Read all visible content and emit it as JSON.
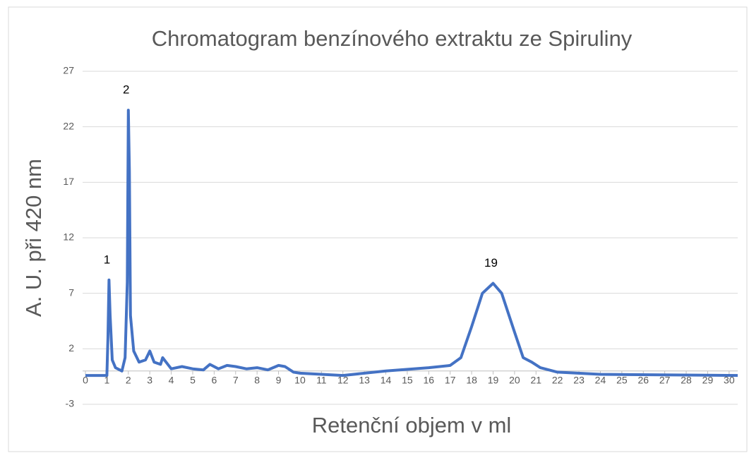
{
  "chart_data": {
    "type": "line",
    "title": "Chromatogram benzínového extraktu ze Spiruliny",
    "x_label": "Retenční objem v ml",
    "y_label": "A. U. při 420 nm",
    "x": [
      0,
      1.0,
      1.05,
      1.1,
      1.15,
      1.25,
      1.4,
      1.7,
      1.85,
      1.95,
      2.0,
      2.05,
      2.1,
      2.25,
      2.5,
      2.8,
      3.0,
      3.2,
      3.5,
      3.6,
      3.8,
      4.0,
      4.5,
      5.0,
      5.5,
      5.8,
      6.2,
      6.6,
      7.0,
      7.5,
      8.0,
      8.5,
      9.0,
      9.3,
      9.7,
      10.0,
      12.0,
      14.0,
      16.0,
      17.0,
      17.5,
      18.0,
      18.5,
      19.0,
      19.4,
      20.0,
      20.4,
      20.8,
      21.2,
      22.0,
      24.0,
      30.4
    ],
    "series": [
      {
        "name": "A. U.",
        "color": "#4472c4",
        "values": [
          -0.4,
          -0.4,
          3,
          8.2,
          5,
          1,
          0.3,
          0,
          1.2,
          8,
          23.5,
          18,
          5,
          1.8,
          0.8,
          1.0,
          1.8,
          0.8,
          0.6,
          1.2,
          0.7,
          0.2,
          0.4,
          0.2,
          0.1,
          0.6,
          0.2,
          0.5,
          0.4,
          0.2,
          0.3,
          0.1,
          0.5,
          0.4,
          -0.1,
          -0.2,
          -0.4,
          0,
          0.3,
          0.5,
          1.2,
          4,
          7,
          7.9,
          7,
          3.5,
          1.2,
          0.8,
          0.3,
          -0.1,
          -0.3,
          -0.4
        ]
      }
    ],
    "annotations": [
      {
        "text": "1",
        "x": 1.1
      },
      {
        "text": "2",
        "x": 2.0
      },
      {
        "text": "19",
        "x": 19.0
      }
    ],
    "xlim": [
      0,
      30.4
    ],
    "xticks": [
      0,
      1,
      2,
      3,
      4,
      5,
      6,
      7,
      8,
      9,
      10,
      11,
      12,
      13,
      14,
      15,
      16,
      17,
      18,
      19,
      20,
      21,
      22,
      23,
      24,
      25,
      26,
      27,
      28,
      29,
      30
    ],
    "ylim": [
      -3,
      27
    ],
    "yticks": [
      -3,
      2,
      7,
      12,
      17,
      22,
      27
    ],
    "grid": true
  }
}
